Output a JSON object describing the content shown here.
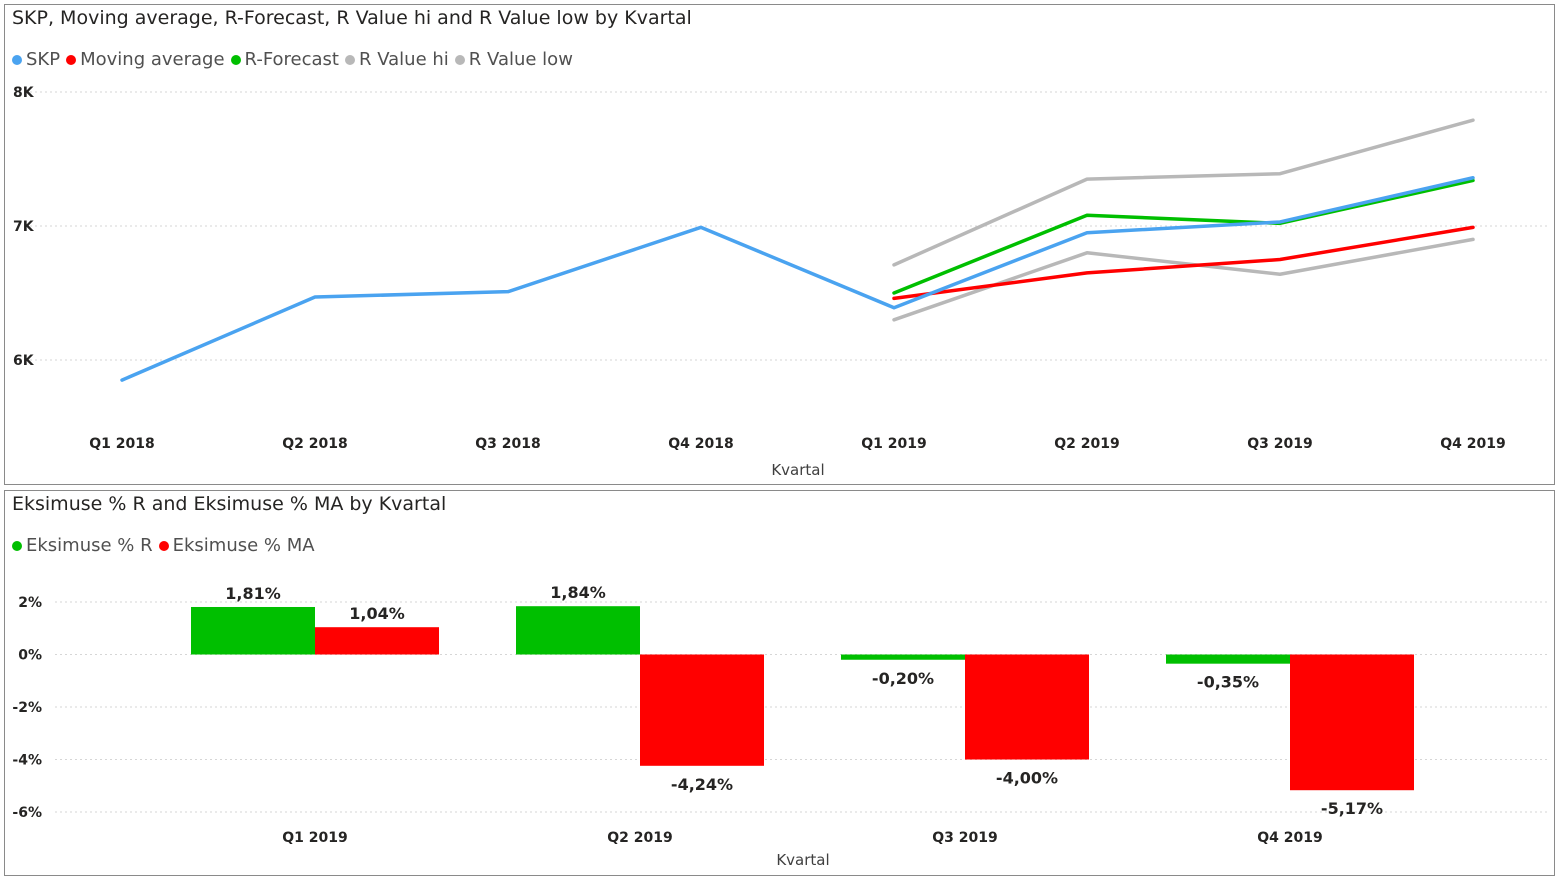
{
  "chart_data": [
    {
      "type": "line",
      "title": "SKP, Moving average, R-Forecast, R Value hi and R Value low by Kvartal",
      "xlabel": "Kvartal",
      "ylabel": "",
      "categories": [
        "Q1 2018",
        "Q2 2018",
        "Q3 2018",
        "Q4 2018",
        "Q1 2019",
        "Q2 2019",
        "Q3 2019",
        "Q4 2019"
      ],
      "y_ticks": [
        {
          "value": 8000,
          "label": "8K"
        },
        {
          "value": 7000,
          "label": "7K"
        },
        {
          "value": 6000,
          "label": "6K"
        }
      ],
      "ylim": [
        5500,
        8100
      ],
      "grid": true,
      "legend_position": "top-left",
      "series": [
        {
          "name": "SKP",
          "color": "#4aa3f0",
          "values": [
            5850,
            6470,
            6510,
            6990,
            6390,
            6950,
            7030,
            7360
          ]
        },
        {
          "name": "Moving average",
          "color": "#ff0000",
          "values": [
            null,
            null,
            null,
            null,
            6460,
            6650,
            6750,
            6990
          ]
        },
        {
          "name": "R-Forecast",
          "color": "#00bf00",
          "values": [
            null,
            null,
            null,
            null,
            6500,
            7080,
            7020,
            7340
          ]
        },
        {
          "name": "R Value hi",
          "color": "#b8b8b8",
          "values": [
            null,
            null,
            null,
            null,
            6710,
            7350,
            7390,
            7790
          ]
        },
        {
          "name": "R Value low",
          "color": "#b8b8b8",
          "values": [
            null,
            null,
            null,
            null,
            6300,
            6800,
            6640,
            6900
          ]
        }
      ]
    },
    {
      "type": "bar",
      "title": "Eksimuse % R and Eksimuse % MA by Kvartal",
      "xlabel": "Kvartal",
      "ylabel": "",
      "categories": [
        "Q1 2019",
        "Q2 2019",
        "Q3 2019",
        "Q4 2019"
      ],
      "y_ticks": [
        {
          "value": 2,
          "label": "2%"
        },
        {
          "value": 0,
          "label": "0%"
        },
        {
          "value": -2,
          "label": "-2%"
        },
        {
          "value": -4,
          "label": "-4%"
        },
        {
          "value": -6,
          "label": "-6%"
        }
      ],
      "ylim": [
        -6,
        2
      ],
      "grid": true,
      "legend_position": "top-left",
      "series": [
        {
          "name": "Eksimuse % R",
          "color": "#00bf00",
          "values": [
            1.81,
            1.84,
            -0.2,
            -0.35
          ],
          "labels": [
            "1,81%",
            "1,84%",
            "-0,20%",
            "-0,35%"
          ]
        },
        {
          "name": "Eksimuse % MA",
          "color": "#ff0000",
          "values": [
            1.04,
            -4.24,
            -4.0,
            -5.17
          ],
          "labels": [
            "1,04%",
            "-4,24%",
            "-4,00%",
            "-5,17%"
          ]
        }
      ]
    }
  ]
}
